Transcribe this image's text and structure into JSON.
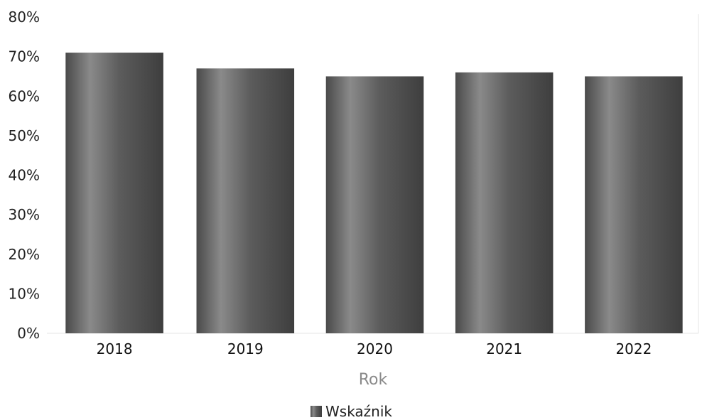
{
  "chart_data": {
    "type": "bar",
    "categories": [
      "2018",
      "2019",
      "2020",
      "2021",
      "2022"
    ],
    "series": [
      {
        "name": "Wskaźnik",
        "values": [
          71,
          67,
          65,
          66,
          65
        ]
      }
    ],
    "title": "",
    "xlabel": "Rok",
    "ylabel": "",
    "ylim": [
      0,
      80
    ],
    "yticks": [
      "0%",
      "10%",
      "20%",
      "30%",
      "40%",
      "50%",
      "60%",
      "70%",
      "80%"
    ],
    "ytick_values": [
      0,
      10,
      20,
      30,
      40,
      50,
      60,
      70,
      80
    ],
    "grid": false,
    "legend_position": "bottom-center",
    "colors": {
      "bar": "#5c5c5c",
      "bar_highlight": "#8a8a8a",
      "bar_shadow": "#3e3e3e",
      "axis": "#e6e6e6"
    }
  }
}
